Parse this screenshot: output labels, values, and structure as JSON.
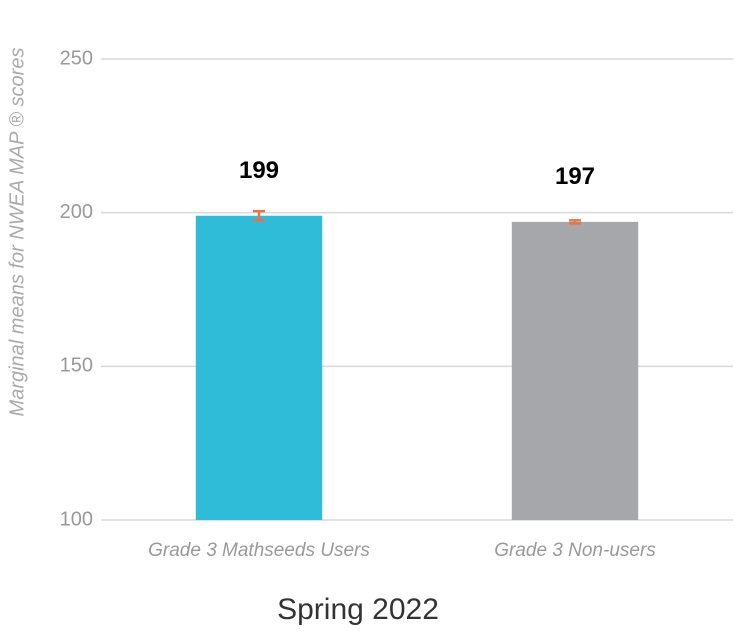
{
  "chart_data": {
    "type": "bar",
    "categories": [
      "Grade 3 Mathseeds Users",
      "Grade 3 Non-users"
    ],
    "values": [
      199,
      197
    ],
    "errors": [
      1.5,
      0.5
    ],
    "colors": [
      "#2ebcd9",
      "#a6a7ab"
    ],
    "error_color": "#e8744a",
    "x_label": "Spring 2022",
    "y_label": "Marginal means for NWEA MAP ® scores",
    "ylim": [
      100,
      250
    ],
    "yticks": [
      100,
      150,
      200,
      250
    ],
    "grid": true
  }
}
